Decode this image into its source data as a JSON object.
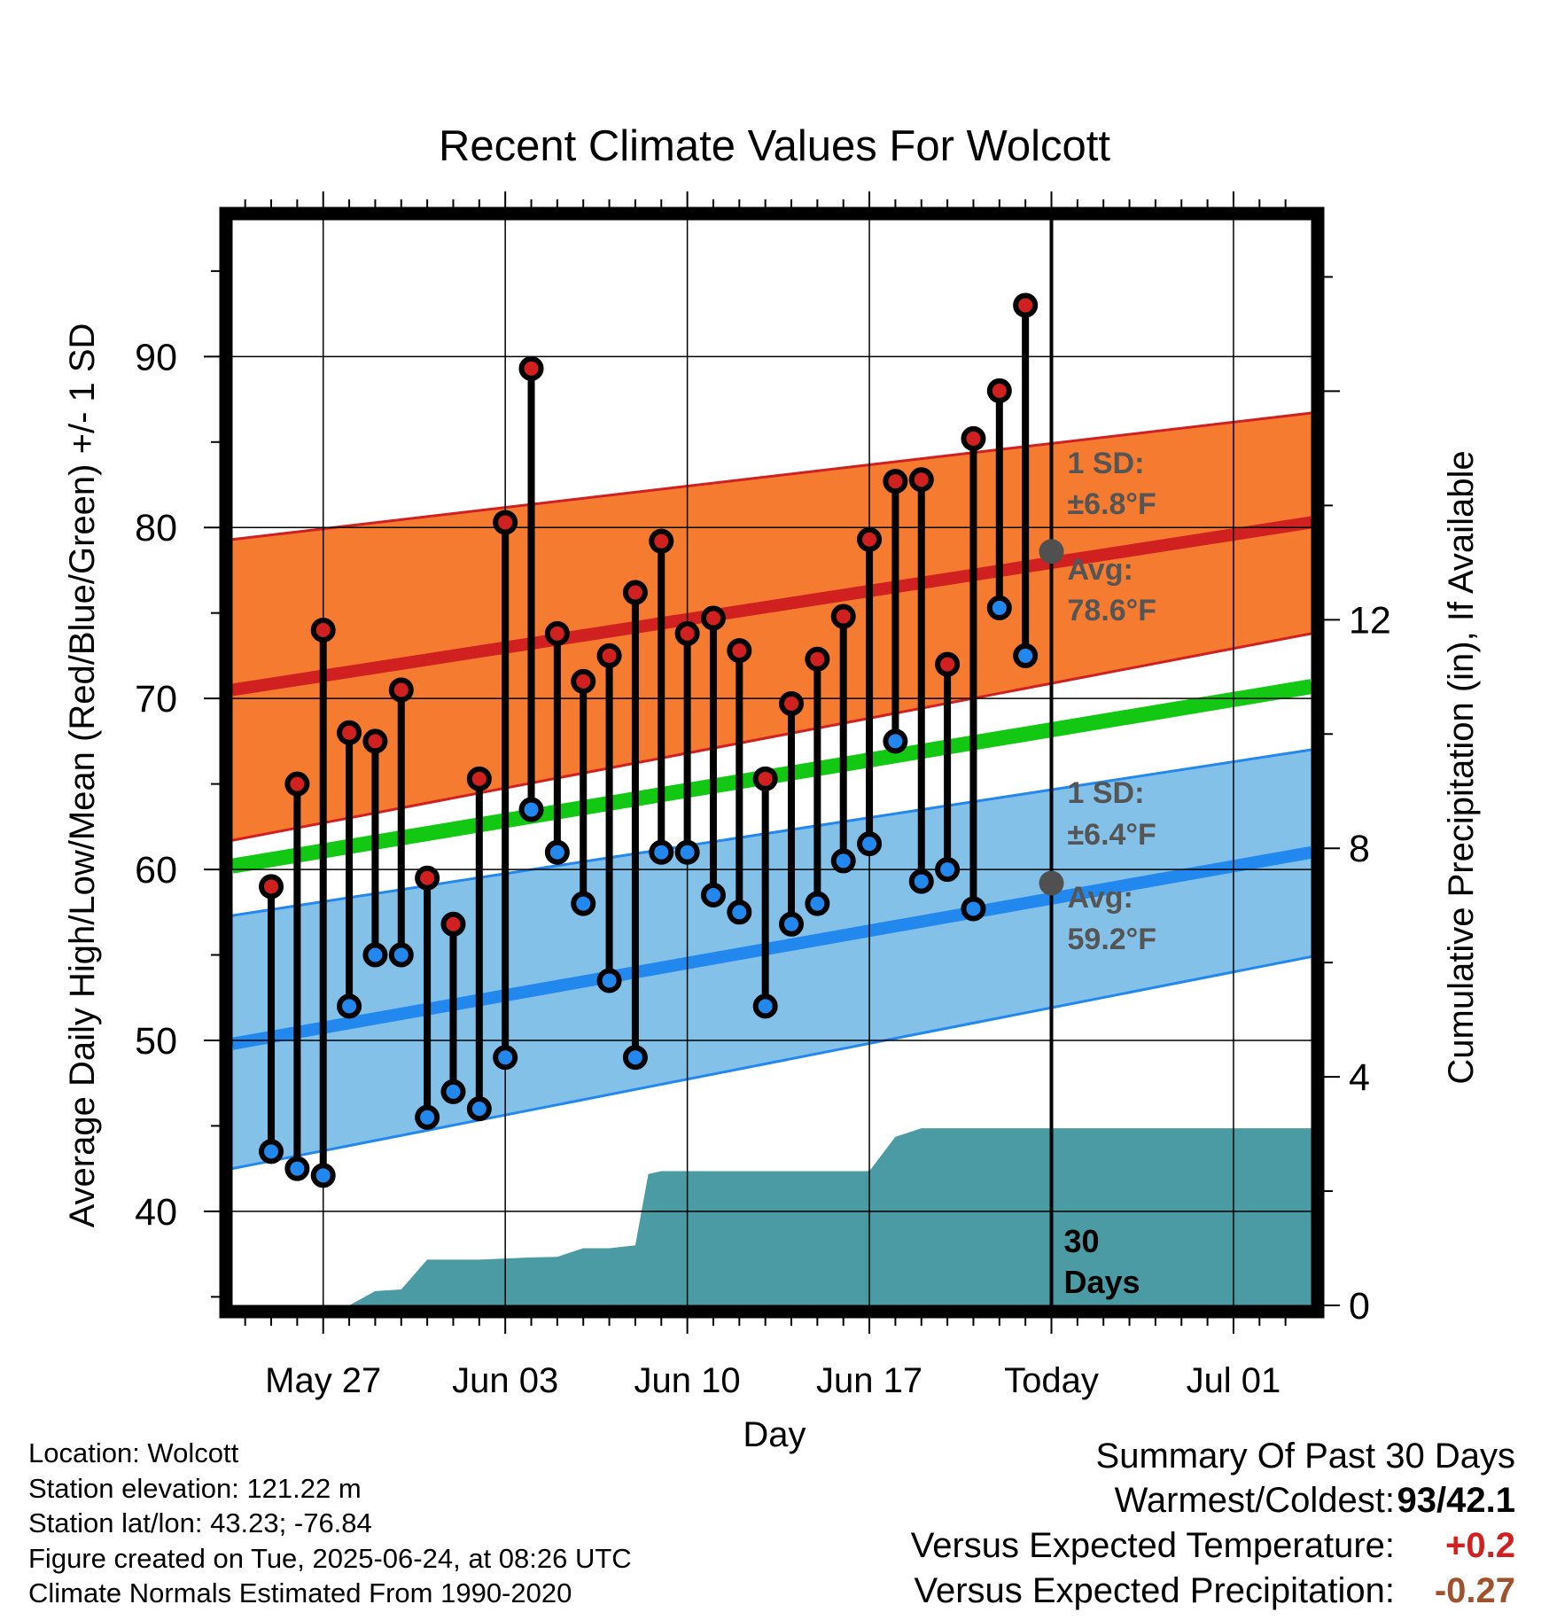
{
  "chart_data": {
    "type": "line",
    "title": "Recent Climate Values For Wolcott",
    "xlabel": "Day",
    "ylabel": "Average Daily High/Low/Mean (Red/Blue/Green) +/- 1 SD",
    "y2label": "Cumulative Precipitation (in), If Available",
    "x_range_days": [
      -31.5,
      10
    ],
    "x_tick_labels": [
      {
        "day": -28,
        "label": "May 27"
      },
      {
        "day": -21,
        "label": "Jun 03"
      },
      {
        "day": -14,
        "label": "Jun 10"
      },
      {
        "day": -7,
        "label": "Jun 17"
      },
      {
        "day": 0,
        "label": "Today"
      },
      {
        "day": 7,
        "label": "Jul 01"
      }
    ],
    "ylim": [
      34.5,
      98
    ],
    "y_ticks": [
      40,
      50,
      60,
      70,
      80,
      90
    ],
    "y2lim": [
      0,
      19
    ],
    "y2_ticks": [
      0,
      4,
      8,
      12
    ],
    "grid": true,
    "normals": {
      "high_avg": {
        "start": 70.5,
        "end": 80.3
      },
      "high_upper": {
        "start": 79.3,
        "end": 86.7
      },
      "high_lower": {
        "start": 61.7,
        "end": 73.8
      },
      "mean_avg": {
        "start": 60.2,
        "end": 70.7
      },
      "low_avg": {
        "start": 49.8,
        "end": 61.0
      },
      "low_upper": {
        "start": 57.3,
        "end": 67.0
      },
      "low_lower": {
        "start": 42.5,
        "end": 54.9
      }
    },
    "daily": {
      "days": [
        -30,
        -29,
        -28,
        -27,
        -26,
        -25,
        -24,
        -23,
        -22,
        -21,
        -20,
        -19,
        -18,
        -17,
        -16,
        -15,
        -14,
        -13,
        -12,
        -11,
        -10,
        -9,
        -8,
        -7,
        -6,
        -5,
        -4,
        -3,
        -2,
        -1
      ],
      "highs": [
        59,
        65,
        74,
        68,
        67.5,
        70.5,
        59.5,
        56.8,
        65.3,
        80.3,
        89.3,
        73.8,
        71,
        72.5,
        76.2,
        79.2,
        73.8,
        74.7,
        72.8,
        65.3,
        69.7,
        72.3,
        74.8,
        79.3,
        82.7,
        82.8,
        72,
        85.2,
        88,
        93
      ],
      "lows": [
        43.5,
        42.5,
        42.1,
        52,
        55,
        55,
        45.5,
        47,
        46,
        49,
        63.5,
        61,
        58,
        53.5,
        49,
        61,
        61,
        58.5,
        57.5,
        52,
        56.8,
        58,
        60.5,
        61.5,
        67.5,
        59.3,
        60,
        57.7,
        75.3,
        72.5
      ]
    },
    "precip_cumulative": {
      "days": [
        -31.5,
        -27,
        -26,
        -25,
        -24,
        -23,
        -22,
        -21,
        -20,
        -19,
        -18,
        -17,
        -16,
        -15.5,
        -15,
        -14,
        -13,
        -12,
        -11,
        -10,
        -9,
        -8,
        -7,
        -6,
        -5,
        -4,
        -3,
        -2,
        -1,
        0,
        10
      ],
      "values": [
        0,
        0,
        0.25,
        0.28,
        0.8,
        0.8,
        0.8,
        0.82,
        0.84,
        0.85,
        1.0,
        1.0,
        1.05,
        2.3,
        2.35,
        2.35,
        2.35,
        2.35,
        2.35,
        2.35,
        2.35,
        2.35,
        2.35,
        2.95,
        3.1,
        3.1,
        3.1,
        3.1,
        3.1,
        3.1,
        3.1
      ]
    },
    "annotations": {
      "high_sd_label": "1 SD:",
      "high_sd_value": "±6.8°F",
      "high_avg_label": "Avg:",
      "high_avg_value": "78.6°F",
      "high_avg_point": 78.6,
      "low_sd_label": "1 SD:",
      "low_sd_value": "±6.4°F",
      "low_avg_label": "Avg:",
      "low_avg_value": "59.2°F",
      "low_avg_point": 59.2,
      "days_number": "30",
      "days_word": "Days"
    },
    "colors": {
      "high_band": "#f47b2f",
      "high_line": "#d02020",
      "mean_line": "#12c812",
      "low_band": "#84c1e8",
      "low_line": "#2288ee",
      "precip": "#4a9ba3",
      "annotation_text": "#555555"
    }
  },
  "footer": {
    "location": "Location: Wolcott",
    "elevation": "Station elevation: 121.22 m",
    "latlon": "Station lat/lon: 43.23; -76.84",
    "created": "Figure created on Tue, 2025-06-24, at 08:26 UTC",
    "normals": "Climate Normals Estimated From 1990-2020"
  },
  "summary": {
    "title": "Summary Of Past 30 Days",
    "warmest_coldest_label": "Warmest/Coldest:",
    "warmest_coldest_value": "93/42.1",
    "temp_label": "Versus Expected Temperature:",
    "temp_value": "+0.2",
    "temp_color": "#d02020",
    "precip_label": "Versus Expected Precipitation:",
    "precip_value": "-0.27",
    "precip_color": "#a0522d"
  }
}
